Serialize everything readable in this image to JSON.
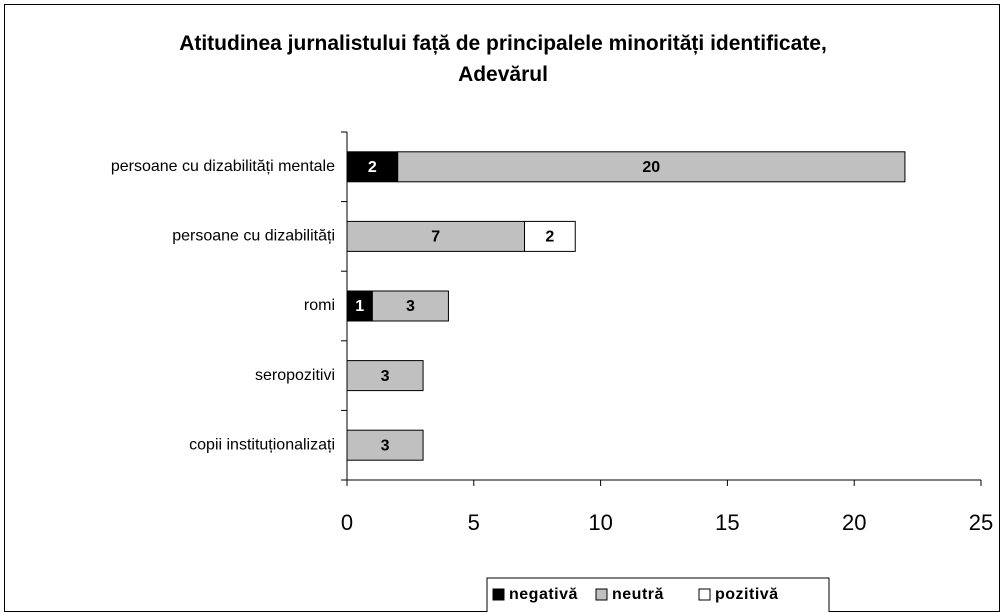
{
  "chart_data": {
    "type": "bar",
    "orientation": "horizontal",
    "stacked": true,
    "title": "Atitudinea jurnalistului față de principalele minorități identificate, Adevărul",
    "categories": [
      "persoane cu dizabilități mentale",
      "persoane cu dizabilități",
      "romi",
      "seropozitivi",
      "copii instituționalizați"
    ],
    "series": [
      {
        "name": "negativă",
        "color": "#000000",
        "values": [
          2,
          null,
          1,
          null,
          null
        ]
      },
      {
        "name": "neutră",
        "color": "#c0c0c0",
        "values": [
          20,
          7,
          3,
          3,
          3
        ]
      },
      {
        "name": "pozitivă",
        "color": "#ffffff",
        "values": [
          null,
          2,
          null,
          null,
          null
        ]
      }
    ],
    "xlim": [
      0,
      25
    ],
    "xticks": [
      0,
      5,
      10,
      15,
      20,
      25
    ],
    "legend": "bottom"
  }
}
